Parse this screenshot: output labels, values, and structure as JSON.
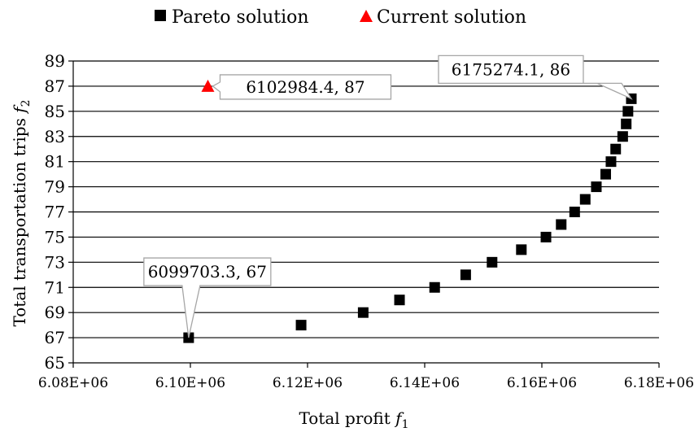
{
  "chart_data": {
    "type": "scatter",
    "xlabel": "Total profit",
    "xlabel_symbol": "f",
    "xlabel_sub": "1",
    "ylabel": "Total transportation trips",
    "ylabel_symbol": "f",
    "ylabel_sub": "2",
    "xlim": [
      6080000,
      6180000
    ],
    "ylim": [
      65,
      89
    ],
    "x_ticks": [
      6080000,
      6100000,
      6120000,
      6140000,
      6160000,
      6180000
    ],
    "x_tick_labels": [
      "6.08E+06",
      "6.10E+06",
      "6.12E+06",
      "6.14E+06",
      "6.16E+06",
      "6.18E+06"
    ],
    "y_ticks": [
      65,
      67,
      69,
      71,
      73,
      75,
      77,
      79,
      81,
      83,
      85,
      87,
      89
    ],
    "y_tick_labels": [
      "65",
      "67",
      "69",
      "71",
      "73",
      "75",
      "77",
      "79",
      "81",
      "83",
      "85",
      "87",
      "89"
    ],
    "grid": "horizontal",
    "legend_position": "top",
    "series": [
      {
        "name": "Pareto solution",
        "marker": "square",
        "color": "#000000",
        "points": [
          [
            6099703.3,
            67
          ],
          [
            6118900,
            68
          ],
          [
            6129500,
            69
          ],
          [
            6135700,
            70
          ],
          [
            6141700,
            71
          ],
          [
            6147000,
            72
          ],
          [
            6151500,
            73
          ],
          [
            6156500,
            74
          ],
          [
            6160700,
            75
          ],
          [
            6163300,
            76
          ],
          [
            6165600,
            77
          ],
          [
            6167400,
            78
          ],
          [
            6169300,
            79
          ],
          [
            6170900,
            80
          ],
          [
            6171800,
            81
          ],
          [
            6172600,
            82
          ],
          [
            6173800,
            83
          ],
          [
            6174400,
            84
          ],
          [
            6174700,
            85
          ],
          [
            6175274.1,
            86
          ]
        ]
      },
      {
        "name": "Current solution",
        "marker": "triangle",
        "color": "#ff0000",
        "points": [
          [
            6102984.4,
            87
          ]
        ]
      }
    ],
    "annotations": [
      {
        "label": "6099703.3, 67",
        "x": 6099703.3,
        "y": 67
      },
      {
        "label": "6102984.4, 87",
        "x": 6102984.4,
        "y": 87
      },
      {
        "label": "6175274.1, 86",
        "x": 6175274.1,
        "y": 86
      }
    ]
  }
}
